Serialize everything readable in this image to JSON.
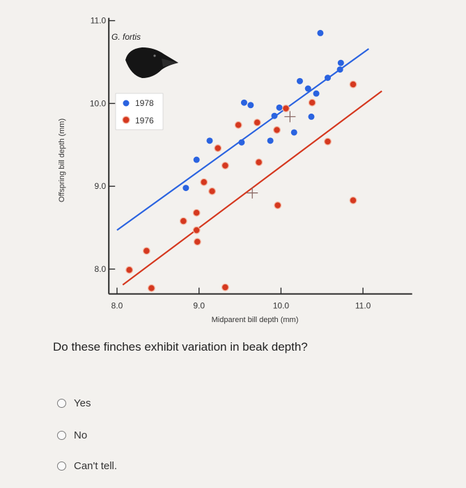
{
  "chart_data": {
    "type": "scatter",
    "species_label": "G. fortis",
    "xlabel": "Midparent bill depth (mm)",
    "ylabel": "Offspring bill depth (mm)",
    "xlim": [
      7.9,
      11.6
    ],
    "ylim": [
      7.7,
      11.0
    ],
    "x_ticks": [
      {
        "value": 8.0,
        "label": "8.0"
      },
      {
        "value": 9.0,
        "label": "9.0"
      },
      {
        "value": 10.0,
        "label": "10.0"
      },
      {
        "value": 11.0,
        "label": "11.0"
      }
    ],
    "y_ticks": [
      {
        "value": 8.0,
        "label": "8.0"
      },
      {
        "value": 9.0,
        "label": "9.0"
      },
      {
        "value": 10.0,
        "label": "10.0"
      },
      {
        "value": 11.0,
        "label": "11.0"
      }
    ],
    "legend_position": "upper-left",
    "series": [
      {
        "name": "1978",
        "color": "#2a63e0",
        "points": [
          [
            8.84,
            8.98
          ],
          [
            8.97,
            9.32
          ],
          [
            9.13,
            9.55
          ],
          [
            9.52,
            9.53
          ],
          [
            9.87,
            9.55
          ],
          [
            9.63,
            9.98
          ],
          [
            9.55,
            10.01
          ],
          [
            9.92,
            9.85
          ],
          [
            9.98,
            9.95
          ],
          [
            10.16,
            9.65
          ],
          [
            10.37,
            9.84
          ],
          [
            10.43,
            10.12
          ],
          [
            10.23,
            10.27
          ],
          [
            10.33,
            10.18
          ],
          [
            10.57,
            10.31
          ],
          [
            10.72,
            10.41
          ],
          [
            10.73,
            10.49
          ],
          [
            10.48,
            10.85
          ]
        ],
        "trend": [
          [
            8.0,
            8.47
          ],
          [
            11.07,
            10.66
          ]
        ]
      },
      {
        "name": "1976",
        "color": "#d5381f",
        "points": [
          [
            8.15,
            7.99
          ],
          [
            8.36,
            8.22
          ],
          [
            8.42,
            7.77
          ],
          [
            8.81,
            8.58
          ],
          [
            8.97,
            8.47
          ],
          [
            8.97,
            8.68
          ],
          [
            8.98,
            8.33
          ],
          [
            9.06,
            9.05
          ],
          [
            9.16,
            8.94
          ],
          [
            9.23,
            9.46
          ],
          [
            9.32,
            9.25
          ],
          [
            9.32,
            7.78
          ],
          [
            9.48,
            9.74
          ],
          [
            9.73,
            9.29
          ],
          [
            9.71,
            9.77
          ],
          [
            9.95,
            9.68
          ],
          [
            10.06,
            9.94
          ],
          [
            9.96,
            8.77
          ],
          [
            10.38,
            10.01
          ],
          [
            10.57,
            9.54
          ],
          [
            10.88,
            10.23
          ],
          [
            10.88,
            8.83
          ]
        ],
        "trend": [
          [
            8.07,
            7.81
          ],
          [
            11.23,
            10.15
          ]
        ]
      }
    ],
    "cross_markers": [
      [
        9.65,
        8.92
      ],
      [
        10.11,
        9.84
      ]
    ]
  },
  "question": {
    "text": "Do these finches exhibit variation in beak depth?",
    "options": [
      "Yes",
      "No",
      "Can't tell."
    ]
  }
}
